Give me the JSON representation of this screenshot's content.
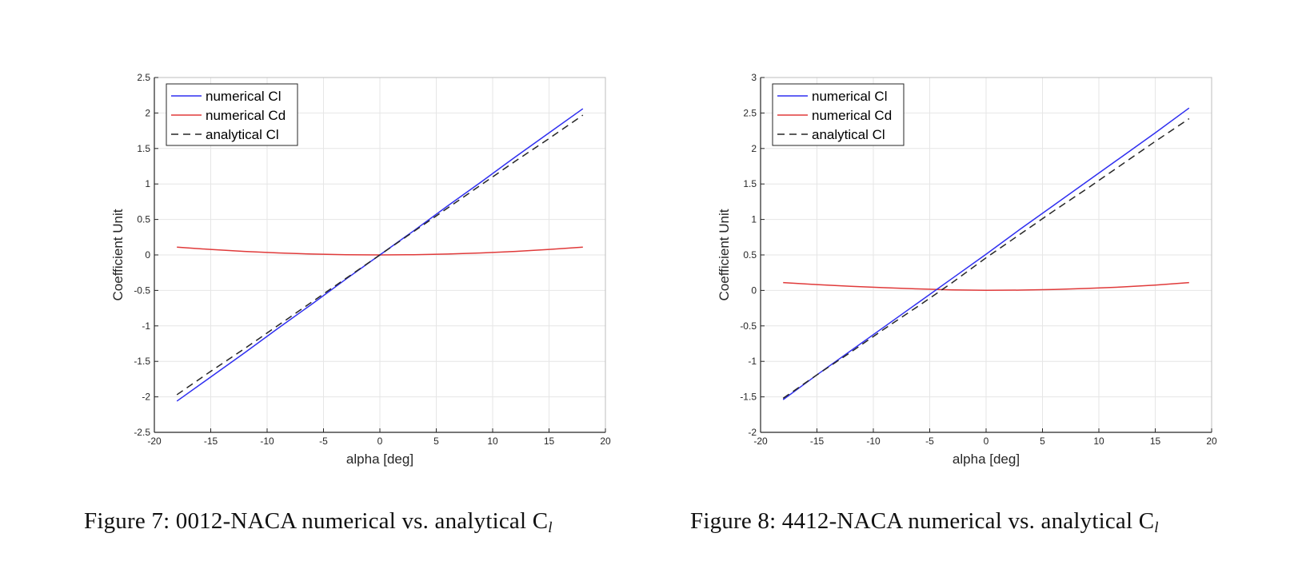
{
  "figures": [
    {
      "caption_prefix": "Figure 7: 0012-NACA numerical vs. analytical C",
      "caption_sub": "l"
    },
    {
      "caption_prefix": "Figure 8: 4412-NACA numerical vs. analytical C",
      "caption_sub": "l"
    }
  ],
  "colors": {
    "numerical_cl": "#2f2ff0",
    "numerical_cd": "#e03a3a",
    "analytical_cl": "#262626",
    "grid": "#e6e6e6",
    "axis": "#262626"
  },
  "chart_data": [
    {
      "type": "line",
      "title": "",
      "xlabel": "alpha [deg]",
      "ylabel": "Coefficient Unit",
      "xlim": [
        -20,
        20
      ],
      "ylim": [
        -2.5,
        2.5
      ],
      "xticks": [
        "-20",
        "-15",
        "-10",
        "-5",
        "0",
        "5",
        "10",
        "15",
        "20"
      ],
      "yticks": [
        "-2.5",
        "-2",
        "-1.5",
        "-1",
        "-0.5",
        "0",
        "0.5",
        "1",
        "1.5",
        "2",
        "2.5"
      ],
      "grid": true,
      "legend_position": "top-left",
      "x": [
        -18,
        -15,
        -12,
        -9,
        -6,
        -3,
        0,
        3,
        6,
        9,
        12,
        15,
        18
      ],
      "series": [
        {
          "name": "numerical Cl",
          "style": "solid",
          "color": "#2f2ff0",
          "values": [
            -2.06,
            -1.72,
            -1.38,
            -1.03,
            -0.69,
            -0.34,
            0.0,
            0.34,
            0.69,
            1.03,
            1.38,
            1.72,
            2.06
          ]
        },
        {
          "name": "numerical Cd",
          "style": "solid",
          "color": "#e03a3a",
          "values": [
            0.11,
            0.077,
            0.049,
            0.028,
            0.012,
            0.003,
            0.0,
            0.003,
            0.012,
            0.028,
            0.049,
            0.077,
            0.11
          ]
        },
        {
          "name": "analytical Cl",
          "style": "dashed",
          "color": "#262626",
          "values": [
            -1.97,
            -1.64,
            -1.32,
            -0.99,
            -0.66,
            -0.33,
            0.0,
            0.33,
            0.66,
            0.99,
            1.32,
            1.64,
            1.97
          ]
        }
      ]
    },
    {
      "type": "line",
      "title": "",
      "xlabel": "alpha [deg]",
      "ylabel": "Coefficient Unit",
      "xlim": [
        -20,
        20
      ],
      "ylim": [
        -2,
        3
      ],
      "xticks": [
        "-20",
        "-15",
        "-10",
        "-5",
        "0",
        "5",
        "10",
        "15",
        "20"
      ],
      "yticks": [
        "-2",
        "-1.5",
        "-1",
        "-0.5",
        "0",
        "0.5",
        "1",
        "1.5",
        "2",
        "2.5",
        "3"
      ],
      "grid": true,
      "legend_position": "top-left",
      "x": [
        -18,
        -15,
        -12,
        -9,
        -6,
        -3,
        0,
        3,
        6,
        9,
        12,
        15,
        18
      ],
      "series": [
        {
          "name": "numerical Cl",
          "style": "solid",
          "color": "#2f2ff0",
          "values": [
            -1.54,
            -1.19,
            -0.85,
            -0.51,
            -0.17,
            0.17,
            0.51,
            0.86,
            1.2,
            1.54,
            1.88,
            2.22,
            2.57
          ]
        },
        {
          "name": "numerical Cd",
          "style": "solid",
          "color": "#e03a3a",
          "values": [
            0.11,
            0.082,
            0.058,
            0.038,
            0.021,
            0.008,
            0.002,
            0.004,
            0.013,
            0.028,
            0.048,
            0.075,
            0.11
          ]
        },
        {
          "name": "analytical Cl",
          "style": "dashed",
          "color": "#262626",
          "values": [
            -1.52,
            -1.19,
            -0.87,
            -0.54,
            -0.22,
            0.11,
            0.46,
            0.79,
            1.12,
            1.44,
            1.77,
            2.1,
            2.42
          ]
        }
      ]
    }
  ]
}
